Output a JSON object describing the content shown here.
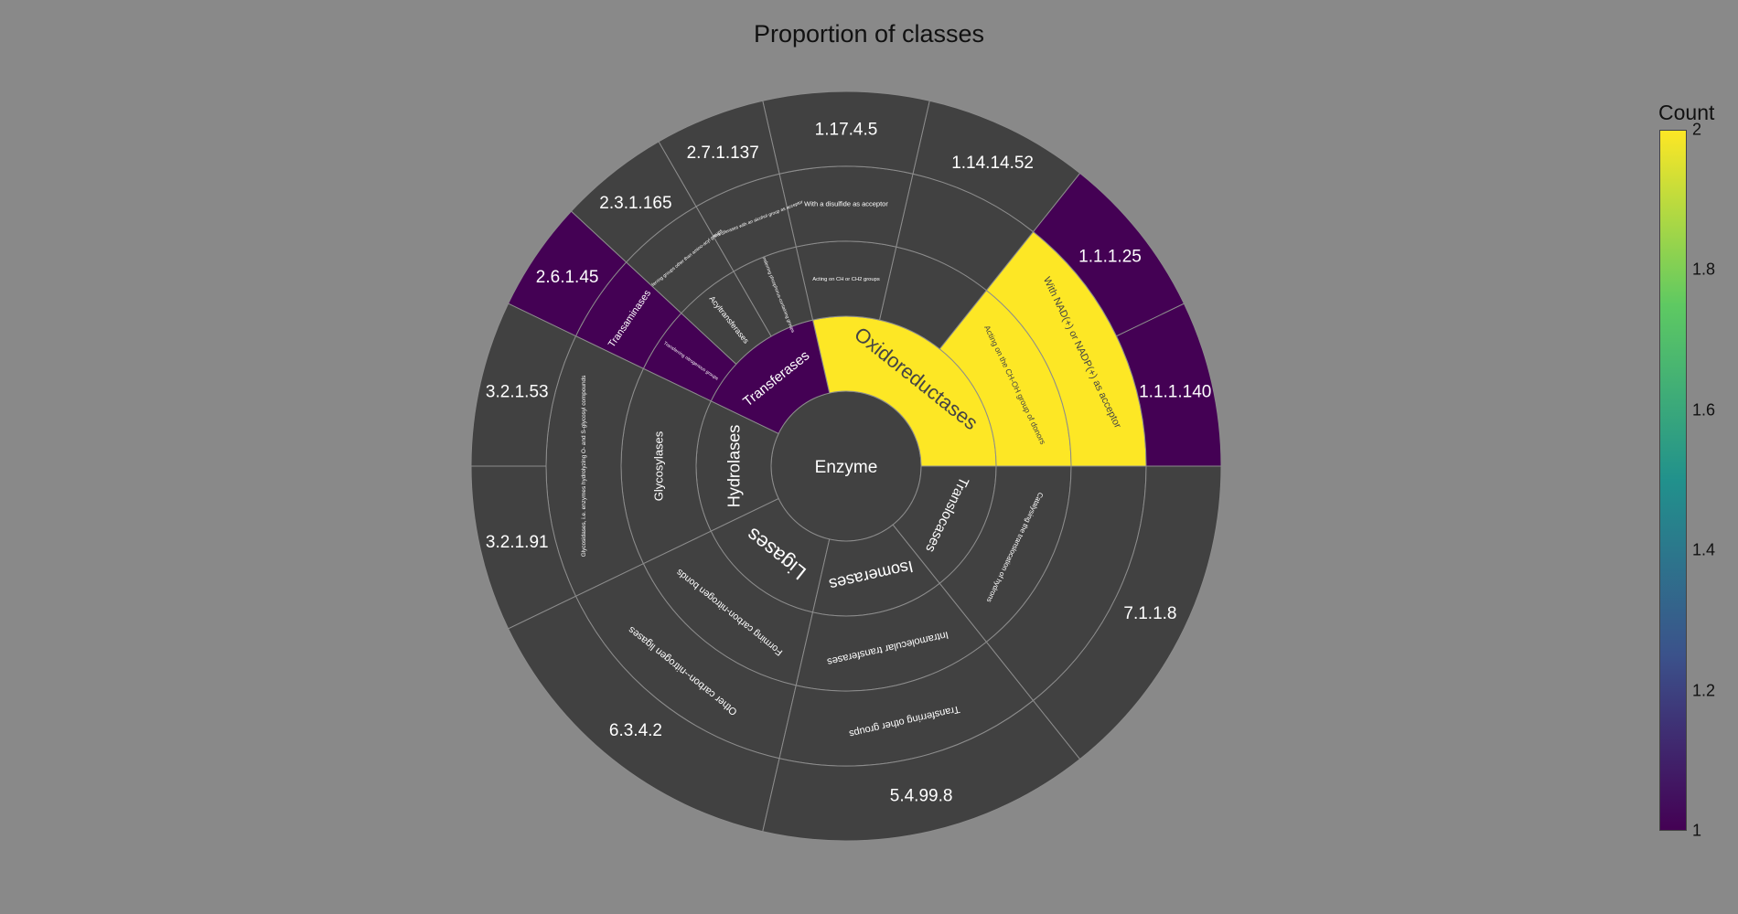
{
  "chart_data": {
    "type": "sunburst",
    "title": "Proportion of classes",
    "root": "Enzyme",
    "colorbar": {
      "title": "Count",
      "min": 1,
      "max": 2,
      "ticks": [
        "1",
        "1.2",
        "1.4",
        "1.6",
        "1.8",
        "2"
      ],
      "colorscale": [
        "#440154",
        "#3b528b",
        "#21918c",
        "#5ec962",
        "#fde725"
      ]
    },
    "nodes": [
      {
        "id": "oxi",
        "label": "Oxidoreductases",
        "parent": "root",
        "value": 2
      },
      {
        "id": "oxi-a",
        "label": "Acting on the CH-OH group of donors",
        "parent": "oxi",
        "value": 2
      },
      {
        "id": "oxi-a-1",
        "label": "With NAD(+) or NADP(+) as acceptor",
        "parent": "oxi-a",
        "value": 2
      },
      {
        "id": "e1",
        "label": "1.1.1.140",
        "parent": "oxi-a-1",
        "value": 1
      },
      {
        "id": "e2",
        "label": "1.1.1.25",
        "parent": "oxi-a-1",
        "value": 1
      },
      {
        "id": "oxi-b",
        "label": "",
        "parent": "oxi",
        "value": 1
      },
      {
        "id": "oxi-b-1",
        "label": "",
        "parent": "oxi-b",
        "value": 1
      },
      {
        "id": "e3",
        "label": "1.14.14.52",
        "parent": "oxi-b-1",
        "value": 1
      },
      {
        "id": "oxi-c",
        "label": "Acting on CH or CH2 groups",
        "parent": "oxi",
        "value": 1
      },
      {
        "id": "oxi-c-1",
        "label": "With a disulfide as acceptor",
        "parent": "oxi-c",
        "value": 1
      },
      {
        "id": "e4",
        "label": "1.17.4.5",
        "parent": "oxi-c-1",
        "value": 1
      },
      {
        "id": "tra",
        "label": "Transferases",
        "parent": "root",
        "value": 1
      },
      {
        "id": "tra-a",
        "label": "Transferring phosphorus-containing groups",
        "parent": "tra",
        "value": 1
      },
      {
        "id": "tra-a-1",
        "label": "Phosphotransferases with an alcohol group as acceptor",
        "parent": "tra-a",
        "value": 1
      },
      {
        "id": "e5",
        "label": "2.7.1.137",
        "parent": "tra-a-1",
        "value": 1
      },
      {
        "id": "tra-b",
        "label": "Acyltransferases",
        "parent": "tra",
        "value": 1
      },
      {
        "id": "tra-b-1",
        "label": "Transferring groups other than amino-acyl groups",
        "parent": "tra-b",
        "value": 1
      },
      {
        "id": "e6",
        "label": "2.3.1.165",
        "parent": "tra-b-1",
        "value": 1
      },
      {
        "id": "tra-c",
        "label": "Transferring nitrogenous groups",
        "parent": "tra",
        "value": 1
      },
      {
        "id": "tra-c-1",
        "label": "Transaminases",
        "parent": "tra-c",
        "value": 1
      },
      {
        "id": "e7",
        "label": "2.6.1.45",
        "parent": "tra-c-1",
        "value": 1
      },
      {
        "id": "hyd",
        "label": "Hydrolases",
        "parent": "root",
        "value": 1
      },
      {
        "id": "hyd-a",
        "label": "Glycosylases",
        "parent": "hyd",
        "value": 1
      },
      {
        "id": "hyd-a-1",
        "label": "Glycosidases, i.e. enzymes hydrolyzing O- and S-glycosyl compounds",
        "parent": "hyd-a",
        "value": 1
      },
      {
        "id": "e8",
        "label": "3.2.1.53",
        "parent": "hyd-a-1",
        "value": 1
      },
      {
        "id": "e9",
        "label": "3.2.1.91",
        "parent": "hyd-a-1",
        "value": 1
      },
      {
        "id": "lig",
        "label": "Ligases",
        "parent": "root",
        "value": 1
      },
      {
        "id": "lig-a",
        "label": "Forming carbon-nitrogen bonds",
        "parent": "lig",
        "value": 1
      },
      {
        "id": "lig-a-1",
        "label": "Other carbon--nitrogen ligases",
        "parent": "lig-a",
        "value": 1
      },
      {
        "id": "e10",
        "label": "6.3.4.2",
        "parent": "lig-a-1",
        "value": 1
      },
      {
        "id": "iso",
        "label": "Isomerases",
        "parent": "root",
        "value": 1
      },
      {
        "id": "iso-a",
        "label": "Intramolecular transferases",
        "parent": "iso",
        "value": 1
      },
      {
        "id": "iso-a-1",
        "label": "Transferring other groups",
        "parent": "iso-a",
        "value": 1
      },
      {
        "id": "e11",
        "label": "5.4.99.8",
        "parent": "iso-a-1",
        "value": 1
      },
      {
        "id": "trl",
        "label": "Translocases",
        "parent": "root",
        "value": 1
      },
      {
        "id": "trl-a",
        "label": "Catalysing the translocation of hydrons",
        "parent": "trl",
        "value": 1
      },
      {
        "id": "trl-a-1",
        "label": "",
        "parent": "trl-a",
        "value": 1
      },
      {
        "id": "e12",
        "label": "7.1.1.8",
        "parent": "trl-a-1",
        "value": 1
      }
    ]
  }
}
